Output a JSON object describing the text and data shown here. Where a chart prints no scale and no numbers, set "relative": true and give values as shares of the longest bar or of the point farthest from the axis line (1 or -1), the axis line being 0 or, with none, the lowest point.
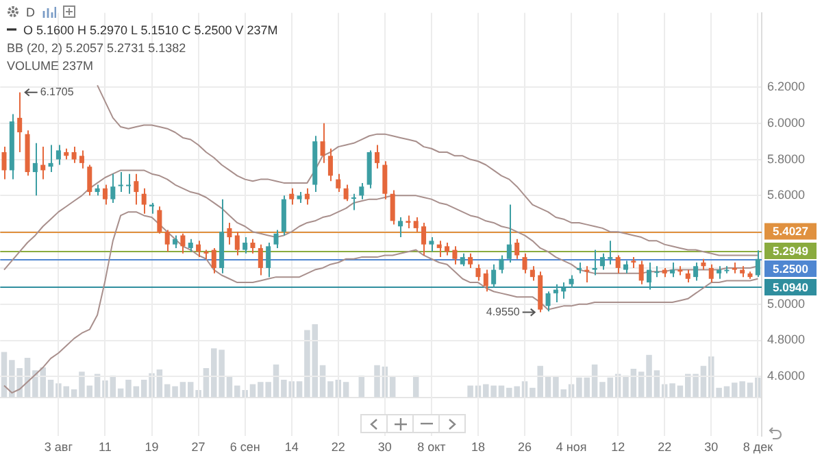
{
  "chart_data": [
    {
      "type": "candlestick",
      "annotations": [
        "D",
        "O 5.1600 H 5.2970 L 5.1510 C 5.2500 V 237M",
        "BB (20, 2) 5.2057 5.2731 5.1382",
        "VOLUME 237M",
        "6.1705",
        "4.9550"
      ],
      "categories": [
        null,
        null,
        null,
        null,
        null,
        null,
        null,
        "3 авг",
        null,
        null,
        null,
        null,
        null,
        "11",
        null,
        null,
        null,
        null,
        null,
        "19",
        null,
        null,
        null,
        null,
        null,
        "27",
        null,
        null,
        null,
        null,
        null,
        "6 сен",
        null,
        null,
        null,
        null,
        null,
        "14",
        null,
        null,
        null,
        null,
        null,
        "22",
        null,
        null,
        null,
        null,
        null,
        "30",
        null,
        null,
        null,
        null,
        null,
        "8 окт",
        null,
        null,
        null,
        null,
        null,
        "18",
        null,
        null,
        null,
        null,
        null,
        "26",
        null,
        null,
        null,
        null,
        null,
        "4 ноя",
        null,
        null,
        null,
        null,
        null,
        "12",
        null,
        null,
        null,
        null,
        null,
        "22",
        null,
        null,
        null,
        null,
        null,
        "30",
        null,
        null,
        null,
        null,
        null,
        "8 дек"
      ],
      "ohlc": [
        [
          5.84,
          5.87,
          5.69,
          5.74
        ],
        [
          5.74,
          6.05,
          5.69,
          6.01
        ],
        [
          6.03,
          6.1705,
          5.84,
          5.95
        ],
        [
          5.94,
          5.96,
          5.71,
          5.73
        ],
        [
          5.73,
          5.89,
          5.6,
          5.78
        ],
        [
          5.77,
          5.87,
          5.69,
          5.74
        ],
        [
          5.76,
          5.88,
          5.73,
          5.78
        ],
        [
          5.8,
          5.88,
          5.77,
          5.85
        ],
        [
          5.84,
          5.86,
          5.8,
          5.82
        ],
        [
          5.84,
          5.87,
          5.78,
          5.8
        ],
        [
          5.82,
          5.85,
          5.75,
          5.78
        ],
        [
          5.76,
          5.77,
          5.6,
          5.62
        ],
        [
          5.62,
          5.66,
          5.6,
          5.64
        ],
        [
          5.64,
          5.66,
          5.55,
          5.58
        ],
        [
          5.58,
          5.72,
          5.56,
          5.65
        ],
        [
          5.66,
          5.73,
          5.62,
          5.66
        ],
        [
          5.66,
          5.72,
          5.61,
          5.66
        ],
        [
          5.68,
          5.72,
          5.55,
          5.62
        ],
        [
          5.61,
          5.64,
          5.5,
          5.55
        ],
        [
          5.54,
          5.56,
          5.5,
          5.55
        ],
        [
          5.52,
          5.54,
          5.39,
          5.4
        ],
        [
          5.4,
          5.41,
          5.29,
          5.33
        ],
        [
          5.33,
          5.38,
          5.31,
          5.36
        ],
        [
          5.38,
          5.39,
          5.28,
          5.32
        ],
        [
          5.31,
          5.36,
          5.29,
          5.34
        ],
        [
          5.33,
          5.35,
          5.26,
          5.29
        ],
        [
          5.29,
          5.3,
          5.25,
          5.28
        ],
        [
          5.3,
          5.31,
          5.17,
          5.2
        ],
        [
          5.2,
          5.58,
          5.17,
          5.4
        ],
        [
          5.42,
          5.45,
          5.33,
          5.37
        ],
        [
          5.38,
          5.4,
          5.27,
          5.3
        ],
        [
          5.3,
          5.37,
          5.28,
          5.34
        ],
        [
          5.34,
          5.36,
          5.28,
          5.31
        ],
        [
          5.31,
          5.33,
          5.16,
          5.2
        ],
        [
          5.2,
          5.34,
          5.15,
          5.32
        ],
        [
          5.33,
          5.41,
          5.31,
          5.39
        ],
        [
          5.4,
          5.6,
          5.38,
          5.58
        ],
        [
          5.61,
          5.64,
          5.55,
          5.58
        ],
        [
          5.58,
          5.62,
          5.56,
          5.6
        ],
        [
          5.61,
          5.64,
          5.55,
          5.58
        ],
        [
          5.66,
          5.93,
          5.62,
          5.9
        ],
        [
          5.9,
          6.0,
          5.78,
          5.82
        ],
        [
          5.82,
          5.86,
          5.68,
          5.71
        ],
        [
          5.69,
          5.72,
          5.62,
          5.64
        ],
        [
          5.64,
          5.66,
          5.57,
          5.58
        ],
        [
          5.59,
          5.61,
          5.52,
          5.59
        ],
        [
          5.6,
          5.67,
          5.58,
          5.65
        ],
        [
          5.66,
          5.85,
          5.64,
          5.84
        ],
        [
          5.84,
          5.88,
          5.75,
          5.78
        ],
        [
          5.77,
          5.79,
          5.58,
          5.61
        ],
        [
          5.61,
          5.63,
          5.44,
          5.46
        ],
        [
          5.43,
          5.48,
          5.37,
          5.46
        ],
        [
          5.46,
          5.49,
          5.42,
          5.45
        ],
        [
          5.46,
          5.48,
          5.4,
          5.42
        ],
        [
          5.43,
          5.45,
          5.27,
          5.33
        ],
        [
          5.33,
          5.37,
          5.29,
          5.35
        ],
        [
          5.33,
          5.35,
          5.26,
          5.31
        ],
        [
          5.32,
          5.34,
          5.27,
          5.29
        ],
        [
          5.3,
          5.32,
          5.22,
          5.25
        ],
        [
          5.22,
          5.28,
          5.21,
          5.26
        ],
        [
          5.26,
          5.28,
          5.2,
          5.22
        ],
        [
          5.2,
          5.22,
          5.13,
          5.15
        ],
        [
          5.17,
          5.19,
          5.07,
          5.1
        ],
        [
          5.11,
          5.22,
          5.09,
          5.19
        ],
        [
          5.19,
          5.27,
          5.17,
          5.25
        ],
        [
          5.25,
          5.55,
          5.23,
          5.33
        ],
        [
          5.34,
          5.36,
          5.25,
          5.27
        ],
        [
          5.26,
          5.28,
          5.17,
          5.19
        ],
        [
          5.19,
          5.21,
          5.13,
          5.15
        ],
        [
          5.16,
          5.18,
          4.955,
          4.97
        ],
        [
          4.99,
          5.07,
          4.96,
          5.06
        ],
        [
          5.06,
          5.11,
          5.01,
          5.08
        ],
        [
          5.07,
          5.12,
          5.03,
          5.09
        ],
        [
          5.11,
          5.16,
          5.09,
          5.14
        ],
        [
          5.19,
          5.23,
          5.17,
          5.2
        ],
        [
          5.19,
          5.21,
          5.12,
          5.18
        ],
        [
          5.19,
          5.3,
          5.16,
          5.2
        ],
        [
          5.21,
          5.28,
          5.19,
          5.26
        ],
        [
          5.25,
          5.35,
          5.22,
          5.26
        ],
        [
          5.26,
          5.27,
          5.17,
          5.2
        ],
        [
          5.19,
          5.24,
          5.17,
          5.22
        ],
        [
          5.24,
          5.26,
          5.2,
          5.23
        ],
        [
          5.22,
          5.24,
          5.11,
          5.13
        ],
        [
          5.12,
          5.23,
          5.08,
          5.19
        ],
        [
          5.18,
          5.21,
          5.15,
          5.18
        ],
        [
          5.19,
          5.2,
          5.15,
          5.17
        ],
        [
          5.17,
          5.23,
          5.15,
          5.19
        ],
        [
          5.19,
          5.21,
          5.16,
          5.18
        ],
        [
          5.17,
          5.19,
          5.12,
          5.14
        ],
        [
          5.15,
          5.23,
          5.13,
          5.21
        ],
        [
          5.23,
          5.25,
          5.19,
          5.21
        ],
        [
          5.2,
          5.22,
          5.12,
          5.14
        ],
        [
          5.17,
          5.21,
          5.14,
          5.19
        ],
        [
          5.19,
          5.21,
          5.17,
          5.19
        ],
        [
          5.2,
          5.23,
          5.17,
          5.19
        ],
        [
          5.19,
          5.21,
          5.15,
          5.17
        ],
        [
          5.17,
          5.18,
          5.14,
          5.15
        ],
        [
          5.16,
          5.297,
          5.151,
          5.25
        ]
      ],
      "colors": [
        "#e5673b",
        "#3c9ea3",
        "#e5673b",
        "#e5673b",
        "#3c9ea3",
        "#e5673b",
        "#3c9ea3",
        "#3c9ea3",
        "#e5673b",
        "#e5673b",
        "#e5673b",
        "#e5673b",
        "#3c9ea3",
        "#e5673b",
        "#3c9ea3",
        "#3c9ea3",
        "#3c9ea3",
        "#e5673b",
        "#e5673b",
        "#3c9ea3",
        "#e5673b",
        "#e5673b",
        "#3c9ea3",
        "#e5673b",
        "#3c9ea3",
        "#e5673b",
        "#e5673b",
        "#e5673b",
        "#3c9ea3",
        "#e5673b",
        "#e5673b",
        "#3c9ea3",
        "#e5673b",
        "#e5673b",
        "#3c9ea3",
        "#3c9ea3",
        "#3c9ea3",
        "#e5673b",
        "#3c9ea3",
        "#e5673b",
        "#3c9ea3",
        "#e5673b",
        "#e5673b",
        "#e5673b",
        "#e5673b",
        "#3c9ea3",
        "#3c9ea3",
        "#3c9ea3",
        "#e5673b",
        "#e5673b",
        "#e5673b",
        "#3c9ea3",
        "#e5673b",
        "#e5673b",
        "#e5673b",
        "#3c9ea3",
        "#e5673b",
        "#e5673b",
        "#e5673b",
        "#3c9ea3",
        "#e5673b",
        "#e5673b",
        "#e5673b",
        "#3c9ea3",
        "#3c9ea3",
        "#3c9ea3",
        "#e5673b",
        "#e5673b",
        "#e5673b",
        "#e5673b",
        "#3c9ea3",
        "#3c9ea3",
        "#3c9ea3",
        "#3c9ea3",
        "#3c9ea3",
        "#e5673b",
        "#3c9ea3",
        "#3c9ea3",
        "#3c9ea3",
        "#e5673b",
        "#3c9ea3",
        "#e5673b",
        "#e5673b",
        "#3c9ea3",
        "#3c9ea3",
        "#e5673b",
        "#3c9ea3",
        "#e5673b",
        "#e5673b",
        "#3c9ea3",
        "#e5673b",
        "#e5673b",
        "#3c9ea3",
        "#3c9ea3",
        "#e5673b",
        "#e5673b",
        "#e5673b",
        "#3c9ea3"
      ],
      "series": [
        {
          "type": "line",
          "color": "#a88f8c",
          "values": [
            null,
            null,
            null,
            null,
            null,
            null,
            null,
            null,
            null,
            null,
            null,
            null,
            6.21,
            6.12,
            6.03,
            5.98,
            5.97,
            5.98,
            5.99,
            5.99,
            5.98,
            5.97,
            5.95,
            5.92,
            5.91,
            5.88,
            5.84,
            5.81,
            5.77,
            5.74,
            5.71,
            5.69,
            5.68,
            5.69,
            5.69,
            5.68,
            5.67,
            5.67,
            5.67,
            5.67,
            5.74,
            5.82,
            5.84,
            5.87,
            5.88,
            5.89,
            5.91,
            5.93,
            5.94,
            5.94,
            5.93,
            5.92,
            5.91,
            5.9,
            5.87,
            5.86,
            5.84,
            5.84,
            5.82,
            5.82,
            5.8,
            5.79,
            5.77,
            5.74,
            5.71,
            5.69,
            5.65,
            5.6,
            5.55,
            5.53,
            5.51,
            5.48,
            5.47,
            5.45,
            5.45,
            5.44,
            5.43,
            5.42,
            5.4,
            5.4,
            5.39,
            5.38,
            5.37,
            5.35,
            5.35,
            5.33,
            5.32,
            5.31,
            5.3,
            5.3,
            5.29,
            5.28,
            5.27,
            5.27,
            5.27,
            5.27,
            5.27,
            5.27
          ]
        },
        {
          "type": "line",
          "color": "#a88f8c",
          "values": [
            5.19,
            5.24,
            5.29,
            5.34,
            5.38,
            5.43,
            5.47,
            5.51,
            5.54,
            5.57,
            5.6,
            5.64,
            5.67,
            5.7,
            5.72,
            5.74,
            5.74,
            5.74,
            5.74,
            5.72,
            5.71,
            5.69,
            5.66,
            5.64,
            5.62,
            5.61,
            5.59,
            5.56,
            5.53,
            5.49,
            5.45,
            5.43,
            5.4,
            5.39,
            5.38,
            5.37,
            5.38,
            5.4,
            5.43,
            5.45,
            5.46,
            5.48,
            5.49,
            5.51,
            5.53,
            5.56,
            5.57,
            5.58,
            5.58,
            5.59,
            5.6,
            5.6,
            5.6,
            5.6,
            5.59,
            5.58,
            5.56,
            5.55,
            5.53,
            5.51,
            5.49,
            5.48,
            5.46,
            5.45,
            5.43,
            5.42,
            5.4,
            5.38,
            5.35,
            5.31,
            5.29,
            5.26,
            5.24,
            5.22,
            5.19,
            5.18,
            5.17,
            5.17,
            5.17,
            5.17,
            5.17,
            5.17,
            5.17,
            5.18,
            5.18,
            5.18,
            5.19,
            5.19,
            5.19,
            5.19,
            5.19,
            5.19,
            5.19,
            5.2,
            5.2,
            5.2,
            5.2,
            5.21
          ]
        },
        {
          "type": "line",
          "color": "#a88f8c",
          "values": [
            4.55,
            4.51,
            4.53,
            4.57,
            4.61,
            4.65,
            4.7,
            4.73,
            4.77,
            4.81,
            4.84,
            4.86,
            4.94,
            5.13,
            5.35,
            5.49,
            5.51,
            5.51,
            5.49,
            5.48,
            5.44,
            5.4,
            5.36,
            5.32,
            5.3,
            5.27,
            5.25,
            5.19,
            5.16,
            5.14,
            5.12,
            5.12,
            5.12,
            5.13,
            5.14,
            5.15,
            5.15,
            5.15,
            5.15,
            5.17,
            5.19,
            5.2,
            5.22,
            5.23,
            5.25,
            5.25,
            5.26,
            5.26,
            5.26,
            5.27,
            5.27,
            5.28,
            5.29,
            5.3,
            5.27,
            5.25,
            5.23,
            5.22,
            5.18,
            5.14,
            5.12,
            5.12,
            5.09,
            5.07,
            5.06,
            5.05,
            5.04,
            5.04,
            5.04,
            5.01,
            4.97,
            4.98,
            4.99,
            4.99,
            5.0,
            5.0,
            5.01,
            5.01,
            5.01,
            5.01,
            5.01,
            5.01,
            5.01,
            5.01,
            5.01,
            5.01,
            5.01,
            5.02,
            5.03,
            5.06,
            5.09,
            5.12,
            5.12,
            5.13,
            5.13,
            5.13,
            5.13,
            5.14
          ]
        }
      ],
      "ylim": [
        4.27,
        6.61
      ],
      "yticks": [
        {
          "value": 4.6,
          "label": "4.6000"
        },
        {
          "value": 4.8,
          "label": "4.8000"
        },
        {
          "value": 5.0,
          "label": "5.0000"
        },
        {
          "value": 5.2,
          "label": null
        },
        {
          "value": 5.4,
          "label": null
        },
        {
          "value": 5.6,
          "label": "5.6000"
        },
        {
          "value": 5.8,
          "label": "5.8000"
        },
        {
          "value": 6.0,
          "label": "6.0000"
        },
        {
          "value": 6.2,
          "label": "6.2000"
        }
      ],
      "ref_lines": [
        {
          "axis": "y",
          "value": 5.4027,
          "label": "5.4027",
          "color": "#e0913f"
        },
        {
          "axis": "y",
          "value": 5.2949,
          "label": "5.2949",
          "color": "#8aab3e"
        },
        {
          "axis": "y",
          "value": 5.25,
          "label": "5.2500",
          "color": "#4f86d1"
        },
        {
          "axis": "y",
          "value": 5.094,
          "label": "5.0940",
          "color": "#2f8e9e"
        }
      ],
      "grid": true,
      "marker": "none",
      "line_style": "solid"
    },
    {
      "type": "bar",
      "relative": true,
      "color": "#d3d9de",
      "categories": [
        null,
        null,
        null,
        null,
        null,
        null,
        null,
        null,
        null,
        null,
        null,
        null,
        null,
        null,
        null,
        null,
        null,
        null,
        null,
        null,
        null,
        null,
        null,
        null,
        null,
        null,
        null,
        null,
        null,
        null,
        null,
        null,
        null,
        null,
        null,
        null,
        null,
        null,
        null,
        null,
        null,
        null,
        null,
        null,
        null,
        null,
        null,
        null,
        null,
        null,
        null,
        null,
        null,
        null,
        null,
        null,
        null,
        null,
        null,
        null,
        null,
        null,
        null,
        null,
        null,
        null,
        null,
        null,
        null,
        null,
        null,
        null,
        null,
        null,
        null,
        null,
        null,
        null,
        null,
        null,
        null,
        null,
        null,
        null,
        null,
        null,
        null,
        null,
        null,
        null,
        null,
        null,
        null,
        null,
        null,
        null,
        null,
        null
      ],
      "values": [
        0.62,
        0.51,
        0.4,
        0.54,
        0.37,
        0.41,
        0.24,
        0.19,
        0.15,
        0.11,
        0.35,
        0.16,
        0.32,
        0.23,
        0.3,
        0.12,
        0.24,
        0.15,
        0.24,
        0.33,
        0.38,
        0.18,
        0.15,
        0.21,
        0.21,
        0.1,
        0.4,
        0.67,
        0.65,
        0.28,
        0.16,
        0.1,
        0.18,
        0.21,
        0.21,
        0.45,
        0.24,
        0.22,
        0.22,
        0.92,
        1,
        0.44,
        0.22,
        0.24,
        0.21,
        null,
        0.3,
        null,
        0.44,
        0.42,
        0.28,
        null,
        null,
        0.3,
        null,
        null,
        null,
        null,
        null,
        null,
        0.16,
        0.16,
        0.18,
        0.16,
        0.16,
        0.13,
        0.15,
        0.22,
        0.13,
        0.43,
        0.29,
        0.28,
        0.11,
        0.18,
        0.27,
        0.27,
        0.45,
        0.21,
        0.27,
        0.32,
        0.3,
        0.39,
        0.35,
        0.58,
        0.37,
        0.18,
        0.19,
        0.16,
        0.32,
        0.32,
        0.43,
        0.56,
        0.13,
        0.15,
        0.2,
        0.22,
        0.2,
        0.27
      ]
    }
  ]
}
